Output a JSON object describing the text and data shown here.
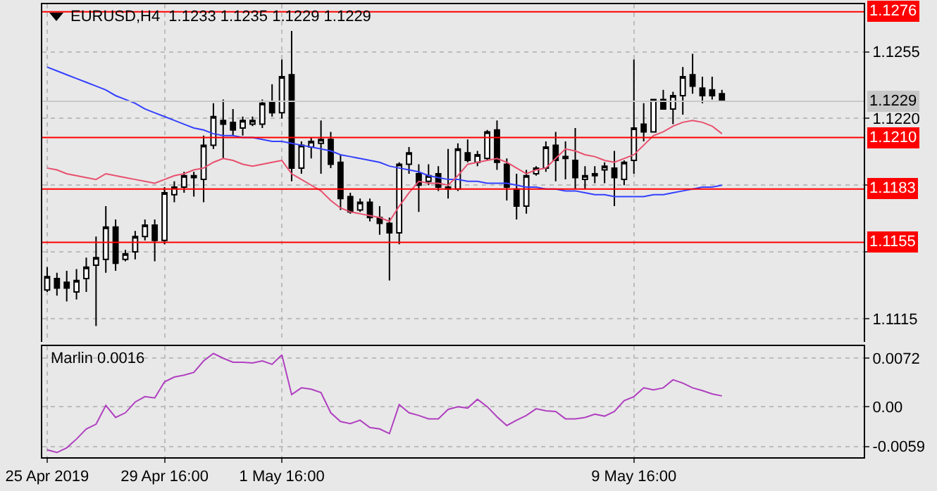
{
  "chart_data": [
    {
      "type": "candlestick",
      "title": "EURUSD,H4  1.1233 1.1235 1.1229 1.1229",
      "categories": [
        null,
        null,
        null,
        null,
        null,
        null,
        null,
        null,
        null,
        null,
        null,
        null,
        null,
        null,
        null,
        null,
        null,
        null,
        null,
        null,
        null,
        null,
        null,
        null,
        null,
        null,
        null,
        null,
        null,
        null,
        null,
        null,
        null,
        null,
        null,
        null,
        null,
        null,
        null,
        null,
        null,
        null,
        null,
        null,
        null,
        null,
        null,
        null,
        null,
        null,
        null,
        null,
        null,
        null,
        null,
        null,
        null,
        null,
        null,
        null,
        null,
        null,
        null,
        null,
        null,
        null,
        null,
        null,
        null,
        null,
        null,
        null,
        null,
        null,
        null,
        null,
        null,
        null,
        null,
        null,
        null,
        null,
        null,
        null
      ],
      "ohlc": [
        [
          1.113,
          1.1142,
          1.1129,
          1.1137
        ],
        [
          1.1136,
          1.1139,
          1.1127,
          1.1131
        ],
        [
          1.1134,
          1.114,
          1.1124,
          1.1131
        ],
        [
          1.1129,
          1.1141,
          1.1125,
          1.1135
        ],
        [
          1.1136,
          1.1147,
          1.1129,
          1.1142
        ],
        [
          1.1143,
          1.1158,
          1.1111,
          1.1147
        ],
        [
          1.1146,
          1.1174,
          1.1139,
          1.1163
        ],
        [
          1.1163,
          1.1167,
          1.114,
          1.1144
        ],
        [
          1.1146,
          1.1151,
          1.1145,
          1.1149
        ],
        [
          1.115,
          1.1161,
          1.1146,
          1.1158
        ],
        [
          1.1158,
          1.1167,
          1.1156,
          1.1164
        ],
        [
          1.1164,
          1.1167,
          1.1145,
          1.1156
        ],
        [
          1.1156,
          1.1184,
          1.1154,
          1.1181
        ],
        [
          1.118,
          1.1187,
          1.1176,
          1.1184
        ],
        [
          1.1184,
          1.1192,
          1.1181,
          1.119
        ],
        [
          1.1189,
          1.1192,
          1.1179,
          1.119
        ],
        [
          1.1188,
          1.1211,
          1.1176,
          1.1206
        ],
        [
          1.1206,
          1.1228,
          1.1204,
          1.1221
        ],
        [
          1.1219,
          1.123,
          1.1199,
          1.1217
        ],
        [
          1.1218,
          1.1225,
          1.1211,
          1.1214
        ],
        [
          1.1215,
          1.1221,
          1.1211,
          1.1219
        ],
        [
          1.1217,
          1.1221,
          1.1216,
          1.1219
        ],
        [
          1.1217,
          1.123,
          1.1215,
          1.1228
        ],
        [
          1.1229,
          1.1238,
          1.1221,
          1.1223
        ],
        [
          1.1223,
          1.1251,
          1.122,
          1.1242
        ],
        [
          1.1243,
          1.1266,
          1.1187,
          1.1194
        ],
        [
          1.1194,
          1.1208,
          1.1191,
          1.1206
        ],
        [
          1.1205,
          1.121,
          1.1199,
          1.1208
        ],
        [
          1.1207,
          1.1219,
          1.1191,
          1.1209
        ],
        [
          1.1209,
          1.1213,
          1.1194,
          1.1196
        ],
        [
          1.1197,
          1.1201,
          1.1172,
          1.1178
        ],
        [
          1.1179,
          1.1181,
          1.117,
          1.1171
        ],
        [
          1.1172,
          1.1178,
          1.1171,
          1.1176
        ],
        [
          1.1176,
          1.1178,
          1.1166,
          1.1168
        ],
        [
          1.1168,
          1.1174,
          1.1159,
          1.1165
        ],
        [
          1.1165,
          1.1168,
          1.1135,
          1.116
        ],
        [
          1.116,
          1.1197,
          1.1154,
          1.1196
        ],
        [
          1.1196,
          1.1205,
          1.1191,
          1.1202
        ],
        [
          1.1191,
          1.1196,
          1.1171,
          1.1185
        ],
        [
          1.1187,
          1.1196,
          1.1185,
          1.119
        ],
        [
          1.1191,
          1.1195,
          1.1182,
          1.1184
        ],
        [
          1.1183,
          1.1204,
          1.1178,
          1.1184
        ],
        [
          1.1183,
          1.1207,
          1.1182,
          1.1204
        ],
        [
          1.1202,
          1.1209,
          1.1197,
          1.1198
        ],
        [
          1.1197,
          1.1203,
          1.1195,
          1.1201
        ],
        [
          1.1199,
          1.1214,
          1.1198,
          1.1213
        ],
        [
          1.1214,
          1.1219,
          1.1193,
          1.1197
        ],
        [
          1.1196,
          1.1199,
          1.1177,
          1.1184
        ],
        [
          1.1183,
          1.1191,
          1.1167,
          1.1174
        ],
        [
          1.1174,
          1.1193,
          1.117,
          1.119
        ],
        [
          1.1191,
          1.1195,
          1.119,
          1.1194
        ],
        [
          1.1194,
          1.1208,
          1.1192,
          1.1205
        ],
        [
          1.1206,
          1.1213,
          1.1187,
          1.1198
        ],
        [
          1.12,
          1.1208,
          1.1188,
          1.1199
        ],
        [
          1.1198,
          1.1215,
          1.1183,
          1.1189
        ],
        [
          1.1188,
          1.1195,
          1.1183,
          1.119
        ],
        [
          1.1191,
          1.1195,
          1.1186,
          1.119
        ],
        [
          1.1193,
          1.1197,
          1.1186,
          1.1195
        ],
        [
          1.1194,
          1.1203,
          1.1174,
          1.1189
        ],
        [
          1.1188,
          1.1198,
          1.1185,
          1.1197
        ],
        [
          1.1198,
          1.1251,
          1.1191,
          1.1215
        ],
        [
          1.1217,
          1.1228,
          1.1208,
          1.1213
        ],
        [
          1.1213,
          1.123,
          1.1213,
          1.123
        ],
        [
          1.123,
          1.1235,
          1.1225,
          1.1225
        ],
        [
          1.1225,
          1.1234,
          1.1217,
          1.1232
        ],
        [
          1.1232,
          1.1247,
          1.1222,
          1.1242
        ],
        [
          1.1243,
          1.1254,
          1.1233,
          1.1237
        ],
        [
          1.1236,
          1.1242,
          1.1228,
          1.1232
        ],
        [
          1.1235,
          1.1242,
          1.123,
          1.1232
        ],
        [
          1.1233,
          1.1235,
          1.1229,
          1.1229
        ],
        null,
        null,
        null,
        null,
        null,
        null,
        null,
        null,
        null,
        null,
        null,
        null,
        null,
        null
      ],
      "series": [
        {
          "type": "line",
          "color": "#3340ff",
          "values": [
            1.1247,
            1.1245,
            1.1243,
            1.1241,
            1.1239,
            1.1237,
            1.1235,
            1.1232,
            1.123,
            1.1228,
            1.1225,
            1.1223,
            1.1221,
            1.1219,
            1.1217,
            1.1215,
            1.1214,
            1.1212,
            1.1211,
            1.1211,
            1.121,
            1.121,
            1.1209,
            1.1208,
            1.1208,
            1.1207,
            1.1206,
            1.1205,
            1.1204,
            1.1203,
            1.1201,
            1.12,
            1.1199,
            1.1198,
            1.1197,
            1.1195,
            1.1194,
            1.1193,
            1.1192,
            1.119,
            1.1189,
            1.1188,
            1.1188,
            1.1187,
            1.1187,
            1.1186,
            1.1186,
            1.1186,
            1.1185,
            1.1184,
            1.1184,
            1.1183,
            1.1183,
            1.1182,
            1.1182,
            1.1181,
            1.118,
            1.118,
            1.1179,
            1.1179,
            1.1179,
            1.1179,
            1.118,
            1.118,
            1.1181,
            1.1182,
            1.1183,
            1.1184,
            1.1184,
            1.1185,
            null,
            null,
            null,
            null,
            null,
            null,
            null,
            null,
            null,
            null,
            null,
            null,
            null,
            null
          ]
        },
        {
          "type": "line",
          "color": "#e8506e",
          "values": [
            1.1194,
            1.1193,
            1.1191,
            1.119,
            1.1189,
            1.1188,
            1.1191,
            1.119,
            1.1189,
            1.1188,
            1.1187,
            1.1186,
            1.1188,
            1.119,
            1.1191,
            1.1193,
            1.1194,
            1.1197,
            1.1199,
            1.1198,
            1.1196,
            1.1195,
            1.1196,
            1.1197,
            1.1198,
            1.1191,
            1.1188,
            1.1185,
            1.1182,
            1.1177,
            1.1173,
            1.1171,
            1.117,
            1.1169,
            1.1168,
            1.1166,
            1.1174,
            1.1181,
            1.1187,
            1.1186,
            1.1186,
            1.1185,
            1.119,
            1.1196,
            1.1197,
            1.1198,
            1.1199,
            1.1197,
            1.1194,
            1.1191,
            1.1193,
            1.1194,
            1.1199,
            1.1204,
            1.1203,
            1.1201,
            1.12,
            1.1198,
            1.1197,
            1.1199,
            1.1201,
            1.1206,
            1.1211,
            1.1213,
            1.1216,
            1.1218,
            1.1219,
            1.1218,
            1.1216,
            1.1212,
            null,
            null,
            null,
            null,
            null,
            null,
            null,
            null,
            null,
            null,
            null,
            null,
            null,
            null
          ]
        }
      ],
      "ylim": [
        1.1102,
        1.128
      ],
      "yticks": [
        1.1115,
        {
          "value": 1.115,
          "label": null
        },
        {
          "value": 1.1185,
          "label": null
        },
        {
          "value": 1.122,
          "label": "1.1220"
        },
        1.1255
      ],
      "ref_lines": [
        {
          "axis": "y",
          "value": 1.1276,
          "label": "1.1276",
          "color": "#ff0000"
        },
        {
          "axis": "y",
          "value": 1.1229,
          "label": "1.1229",
          "color": "#c8c8c8"
        },
        {
          "axis": "y",
          "value": 1.121,
          "label": "1.1210",
          "color": "#ff0000"
        },
        {
          "axis": "y",
          "value": 1.1183,
          "label": "1.1183",
          "color": "#ff0000"
        },
        {
          "axis": "y",
          "value": 1.1155,
          "label": "1.1155",
          "color": "#ff0000"
        }
      ],
      "grid": true,
      "tick_labels": "y"
    },
    {
      "type": "line",
      "title": "Marlin 0.0016",
      "categories": [
        "25 Apr 2019",
        null,
        null,
        null,
        null,
        null,
        null,
        null,
        null,
        null,
        null,
        null,
        "29 Apr 16:00",
        null,
        null,
        null,
        null,
        null,
        null,
        null,
        null,
        null,
        null,
        null,
        "1 May 16:00",
        null,
        null,
        null,
        null,
        null,
        null,
        null,
        null,
        null,
        null,
        null,
        null,
        null,
        null,
        null,
        null,
        null,
        null,
        null,
        null,
        null,
        null,
        null,
        null,
        null,
        null,
        null,
        null,
        null,
        null,
        null,
        null,
        null,
        null,
        null,
        "9 May 16:00",
        null,
        null,
        null,
        null,
        null,
        null,
        null,
        null,
        null,
        null,
        null,
        null,
        null,
        null,
        null,
        null,
        null,
        null,
        null,
        null,
        null,
        null,
        null
      ],
      "series": [
        {
          "color": "#b040c0",
          "values": [
            -0.0064,
            -0.0068,
            -0.0061,
            -0.0048,
            -0.0033,
            -0.0026,
            0.0002,
            -0.0016,
            -0.0009,
            0.0007,
            0.0015,
            0.0013,
            0.0037,
            0.0044,
            0.0047,
            0.0051,
            0.0068,
            0.0079,
            0.0072,
            0.0066,
            0.0066,
            0.0065,
            0.0068,
            0.0063,
            0.0077,
            0.0018,
            0.0028,
            0.0026,
            0.0021,
            -0.0009,
            -0.0022,
            -0.0025,
            -0.002,
            -0.0031,
            -0.0033,
            -0.004,
            0.0003,
            -0.0009,
            -0.0013,
            -0.0018,
            -0.0018,
            -0.0004,
            0.0,
            -0.0002,
            0.0011,
            0.0,
            -0.0015,
            -0.0028,
            -0.002,
            -0.0013,
            -0.0003,
            -0.0006,
            -0.0007,
            -0.0018,
            -0.0018,
            -0.0016,
            -0.0011,
            -0.0014,
            -0.0007,
            0.0009,
            0.0015,
            0.0028,
            0.0025,
            0.0028,
            0.004,
            0.0035,
            0.0028,
            0.0024,
            0.0019,
            0.0016,
            null,
            null,
            null,
            null,
            null,
            null,
            null,
            null,
            null,
            null,
            null,
            null,
            null,
            null
          ]
        }
      ],
      "ylim": [
        -0.0075,
        0.009
      ],
      "yticks": [
        0.0072,
        {
          "value": 0,
          "label": "0.00"
        },
        -0.0059
      ],
      "grid": true
    }
  ]
}
